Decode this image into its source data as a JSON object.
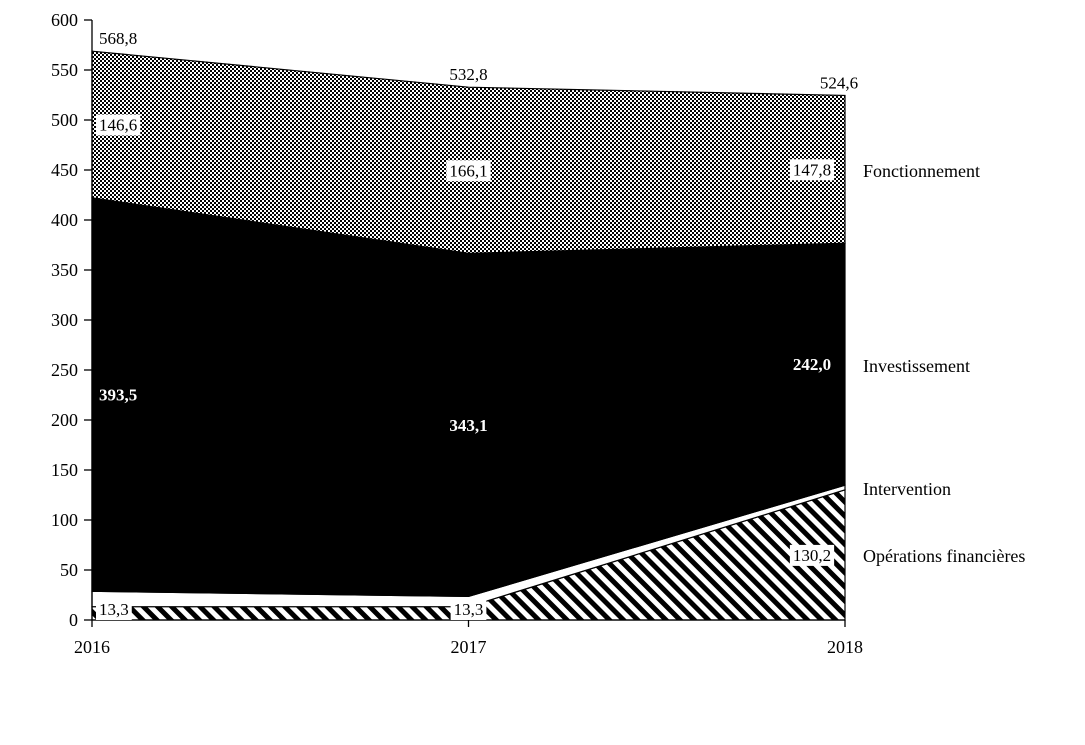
{
  "chart_data": {
    "type": "area",
    "stacked": true,
    "title": "",
    "xlabel": "",
    "ylabel": "",
    "x": [
      "2016",
      "2017",
      "2018"
    ],
    "ylim": [
      0,
      600
    ],
    "ytick_step": 50,
    "grid": false,
    "legend_position": "right-of-plot",
    "series": [
      {
        "name": "Opérations financières",
        "values": [
          13.3,
          13.3,
          130.2
        ],
        "labels": [
          "13,3",
          "13,3",
          "130,2"
        ],
        "fill": "diagonal-hatch"
      },
      {
        "name": "Intervention",
        "values": [
          15.4,
          10.3,
          4.6
        ],
        "labels": [
          null,
          null,
          null
        ],
        "fill": "white"
      },
      {
        "name": "Investissement",
        "values": [
          393.5,
          343.1,
          242.0
        ],
        "labels": [
          "393,5",
          "343,1",
          "242,0"
        ],
        "fill": "black"
      },
      {
        "name": "Fonctionnement",
        "values": [
          146.6,
          166.1,
          147.8
        ],
        "labels": [
          "146,6",
          "166,1",
          "147,8"
        ],
        "fill": "checkerboard-gray"
      }
    ],
    "stack_totals": [
      568.8,
      532.8,
      524.6
    ],
    "stack_total_labels": [
      "568,8",
      "532,8",
      "524,6"
    ],
    "colors": {
      "black_area": "#000000",
      "white_area": "#ffffff",
      "pattern_ink": "#000000",
      "background": "#ffffff"
    }
  }
}
